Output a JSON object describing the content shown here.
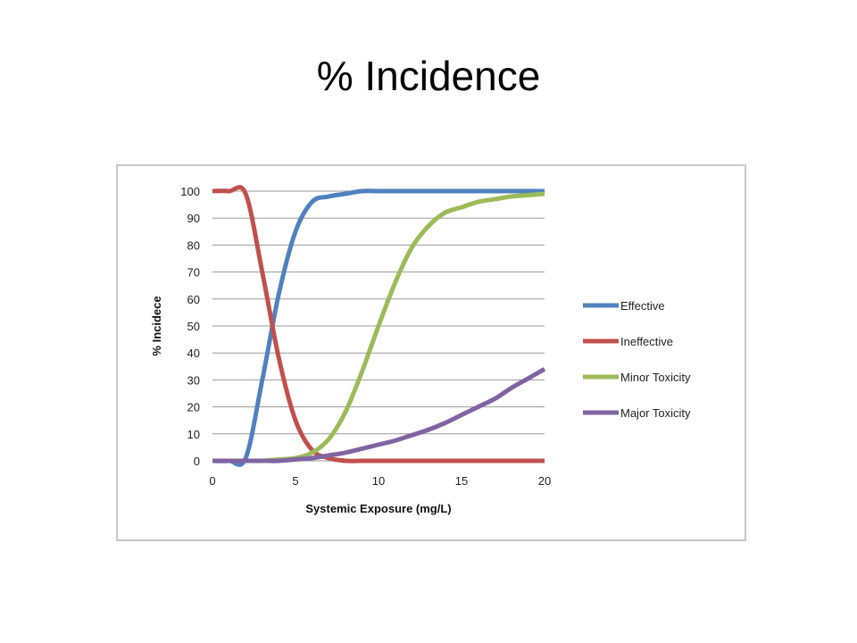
{
  "slide": {
    "title": "% Incidence"
  },
  "chart_data": {
    "type": "line",
    "title": "",
    "xlabel": "Systemic Exposure (mg/L)",
    "ylabel": "% Incidece",
    "xlim": [
      0,
      20
    ],
    "ylim": [
      0,
      100
    ],
    "xticks": [
      0,
      5,
      10,
      15,
      20
    ],
    "yticks": [
      0,
      10,
      20,
      30,
      40,
      50,
      60,
      70,
      80,
      90,
      100
    ],
    "grid": "horizontal",
    "legend_position": "right",
    "x": [
      0,
      1,
      2,
      3,
      4,
      5,
      6,
      7,
      8,
      9,
      10,
      11,
      12,
      13,
      14,
      15,
      16,
      17,
      18,
      19,
      20
    ],
    "series": [
      {
        "name": "Effective",
        "color": "#4f81bd",
        "values": [
          0,
          0,
          1,
          30,
          62,
          85,
          96,
          98,
          99,
          100,
          100,
          100,
          100,
          100,
          100,
          100,
          100,
          100,
          100,
          100,
          100
        ]
      },
      {
        "name": "Ineffective",
        "color": "#c0504d",
        "values": [
          100,
          100,
          99,
          70,
          38,
          15,
          4,
          1,
          0,
          0,
          0,
          0,
          0,
          0,
          0,
          0,
          0,
          0,
          0,
          0,
          0
        ]
      },
      {
        "name": "Minor Toxicity",
        "color": "#9bbb59",
        "values": [
          0,
          0,
          0,
          0,
          0.5,
          1,
          3,
          8,
          18,
          33,
          50,
          66,
          79,
          87,
          92,
          94,
          96,
          97,
          98,
          98.5,
          99
        ]
      },
      {
        "name": "Major Toxicity",
        "color": "#8064a2",
        "values": [
          0,
          0,
          0,
          0,
          0,
          0.5,
          1,
          2,
          3,
          4.5,
          6,
          7.5,
          9.5,
          11.5,
          14,
          17,
          20,
          23,
          27,
          30.5,
          34
        ]
      }
    ]
  }
}
